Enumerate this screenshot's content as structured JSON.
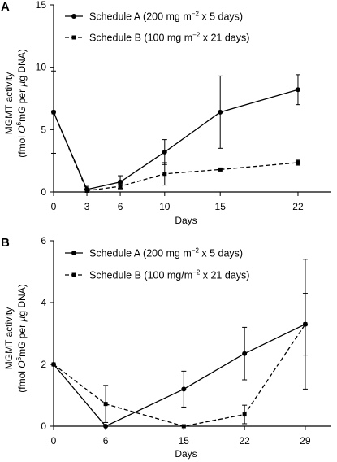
{
  "chart_data": [
    {
      "panel": "A",
      "type": "line",
      "xlabel": "Days",
      "ylabel_line1": "MGMT activity",
      "ylabel_line2": "(fmol O6mG per µg DNA)",
      "ylabel_parts": {
        "pre": "(fmol ",
        "italic_o": "O",
        "sup": "6",
        "mid": "mG per ",
        "italic_mu": "µ",
        "post": "g DNA)"
      },
      "x_ticks": [
        "0",
        "3",
        "6",
        "10",
        "15",
        "22"
      ],
      "x_tick_values": [
        0,
        3,
        6,
        10,
        15,
        22
      ],
      "y_ticks": [
        "0",
        "5",
        "10",
        "15"
      ],
      "xlim": [
        0,
        25
      ],
      "ylim": [
        0,
        15
      ],
      "legend_position": "top-left",
      "series": [
        {
          "legend_label": "Schedule A (200 mg m−2 x 5 days)",
          "legend_parts": {
            "pre": "Schedule A (200 mg m",
            "sup": "−2",
            "post": " x 5 days)"
          },
          "marker": "circle",
          "line_style": "solid",
          "x": [
            0,
            3,
            6,
            10,
            15,
            22
          ],
          "y": [
            6.4,
            0.2,
            0.8,
            3.2,
            6.4,
            8.2
          ],
          "err": [
            3.3,
            0.25,
            0.5,
            1.0,
            2.9,
            1.2
          ]
        },
        {
          "legend_label": "Schedule B (100 mg m−2 x 21 days)",
          "legend_parts": {
            "pre": "Schedule B (100 mg m",
            "sup": "−2",
            "post": " x 21 days)"
          },
          "marker": "square",
          "line_style": "dashed",
          "x": [
            0,
            3,
            6,
            10,
            15,
            22
          ],
          "y": [
            6.4,
            0.1,
            0.45,
            1.45,
            1.8,
            2.35
          ],
          "err": [
            0,
            0.15,
            0.2,
            0.9,
            0.1,
            0.2
          ]
        }
      ]
    },
    {
      "panel": "B",
      "type": "line",
      "xlabel": "Days",
      "ylabel_line1": "MGMT activity",
      "ylabel_line2": "(fmol O6mG per µg DNA)",
      "ylabel_parts": {
        "pre": "(fmol ",
        "italic_o": "O",
        "sup": "6",
        "mid": "mG per ",
        "italic_mu": "µ",
        "post": "g DNA)"
      },
      "x_ticks": [
        "0",
        "6",
        "15",
        "22",
        "29"
      ],
      "x_tick_values": [
        0,
        6,
        15,
        22,
        29
      ],
      "y_ticks": [
        "0",
        "2",
        "4",
        "6"
      ],
      "xlim": [
        0,
        32
      ],
      "ylim": [
        0,
        6
      ],
      "legend_position": "top-left",
      "series": [
        {
          "legend_label": "Schedule A (200 mg m−2 x 5 days)",
          "legend_parts": {
            "pre": "Schedule A (200 mg m",
            "sup": "−2",
            "post": " x 5 days)"
          },
          "marker": "circle",
          "line_style": "solid",
          "x": [
            0,
            6,
            15,
            22,
            29
          ],
          "y": [
            2.0,
            0.0,
            1.2,
            2.35,
            3.3
          ],
          "err": [
            0,
            0,
            0.58,
            0.85,
            2.1
          ]
        },
        {
          "legend_label": "Schedule B (100 mg/m−2 x 21 days)",
          "legend_parts": {
            "pre": "Schedule B (100 mg/m",
            "sup": "−2",
            "post": " x 21 days)"
          },
          "marker": "square",
          "line_style": "dashed",
          "x": [
            0,
            6,
            15,
            22,
            29
          ],
          "y": [
            2.0,
            0.72,
            0.0,
            0.38,
            3.3
          ],
          "err": [
            0,
            0.6,
            0,
            0.3,
            1.0
          ]
        }
      ]
    }
  ]
}
